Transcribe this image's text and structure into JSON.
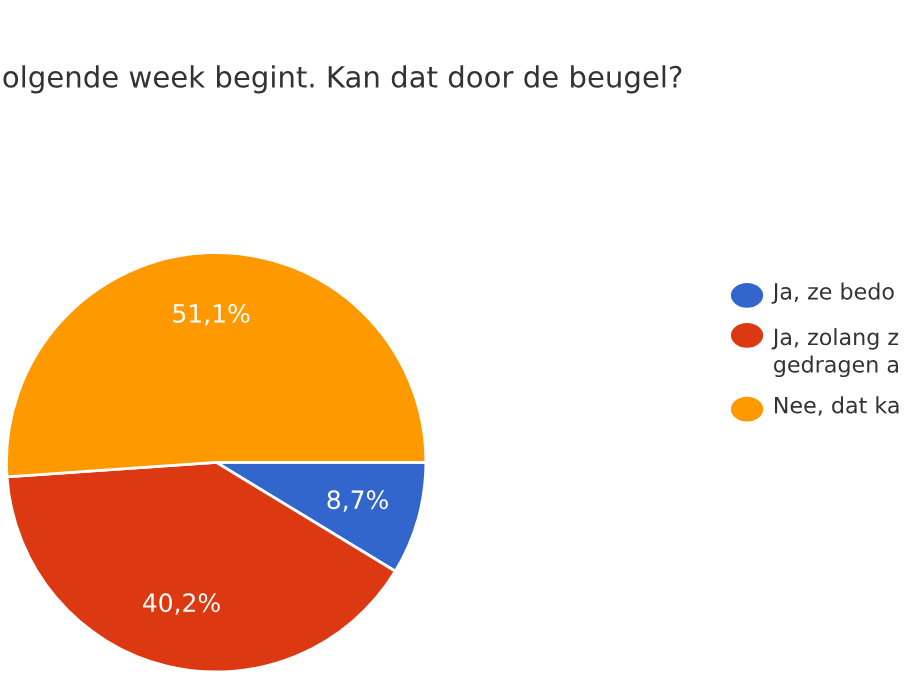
{
  "chart_data": {
    "type": "pie",
    "title": "olgende week begint. Kan dat door de beugel?",
    "categories": [
      "Ja, ze bedo",
      "Ja, zolang z\ngedragen a",
      "Nee, dat ka"
    ],
    "values": [
      8.7,
      40.2,
      51.1
    ],
    "value_labels": [
      "8,7%",
      "40,2%",
      "51,1%"
    ],
    "colors": [
      "#3366cc",
      "#dc3912",
      "#ff9900"
    ],
    "legend": "right"
  }
}
